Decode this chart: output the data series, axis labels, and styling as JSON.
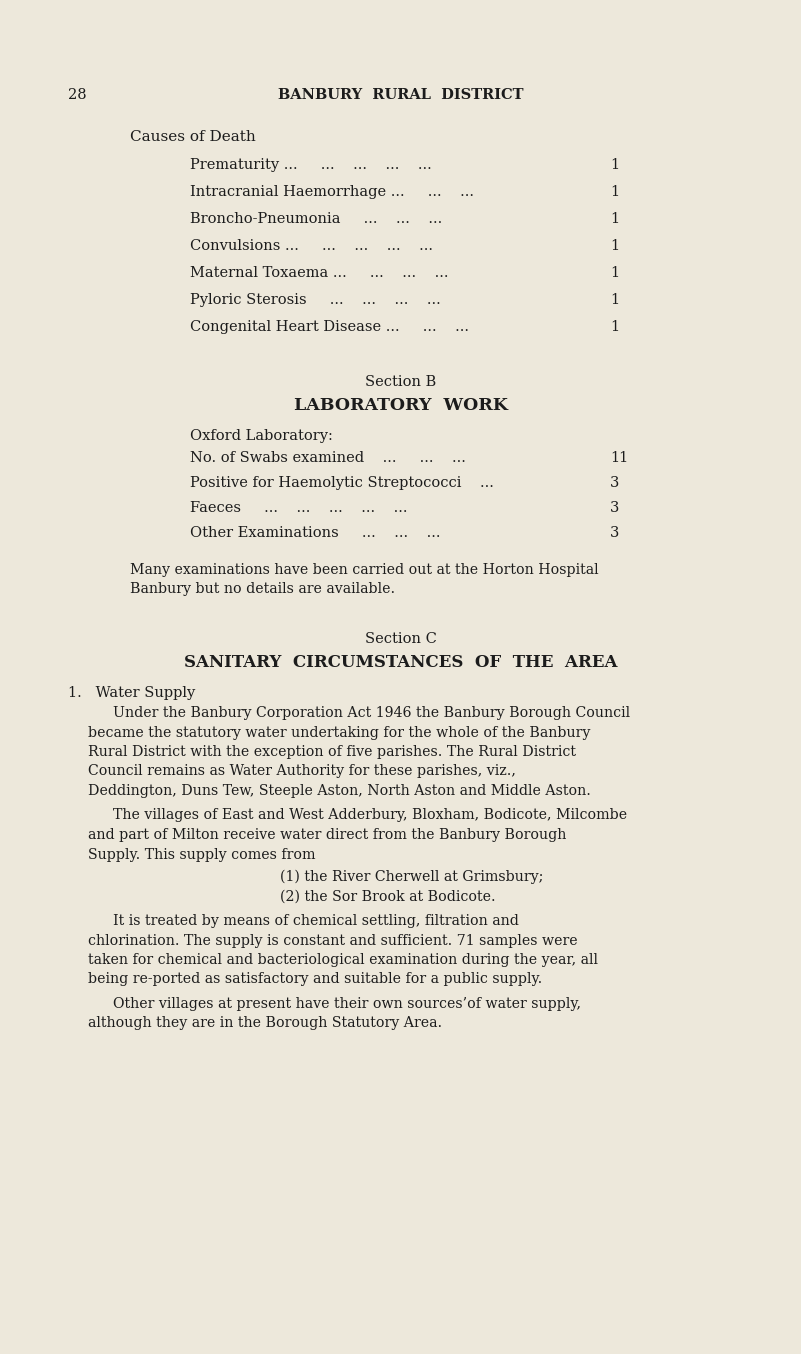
{
  "bg_color": "#ede8db",
  "text_color": "#1c1c1c",
  "page_number": "28",
  "header": "BANBURY  RURAL  DISTRICT",
  "causes_heading": "Causes of Death",
  "causes": [
    [
      "Prematurity ...     ...    ...    ...    ...",
      "1"
    ],
    [
      "Intracranial Haemorrhage ...     ...    ...",
      "1"
    ],
    [
      "Broncho-Pneumonia     ...    ...    ...",
      "1"
    ],
    [
      "Convulsions ...     ...    ...    ...    ...",
      "1"
    ],
    [
      "Maternal Toxaema ...     ...    ...    ...",
      "1"
    ],
    [
      "Pyloric Sterosis     ...    ...    ...    ...",
      "1"
    ],
    [
      "Congenital Heart Disease ...     ...    ...",
      "1"
    ]
  ],
  "section_b_label": "Section B",
  "section_b_heading": "LABORATORY  WORK",
  "oxford_label": "Oxford Laboratory:",
  "lab_items": [
    [
      "No. of Swabs examined    ...     ...    ...",
      "11"
    ],
    [
      "Positive for Haemolytic Streptococci    ...",
      "3"
    ],
    [
      "Faeces     ...    ...    ...    ...    ...",
      "3"
    ],
    [
      "Other Examinations     ...    ...    ...",
      "3"
    ]
  ],
  "lab_note_line1": "Many examinations have been carried out at the Horton Hospital",
  "lab_note_line2": "Banbury but no details are available.",
  "section_c_label": "Section C",
  "section_c_heading": "SANITARY  CIRCUMSTANCES  OF  THE  AREA",
  "water_heading": "1.   Water Supply",
  "para1_indent": "Under the Banbury Corporation Act 1946 the Banbury Borough Council became the statutory water undertaking for the whole of the Banbury Rural District with the exception of five parishes.  The Rural District Council remains as Water Authority for these parishes, viz., Deddington, Duns Tew, Steeple Aston, North Aston and Middle Aston.",
  "para2_indent": "The villages of East and West Adderbury, Bloxham, Bodicote, Milcombe and part of Milton receive water direct from the Banbury Borough Supply.  This supply comes from",
  "bullet1": "(1) the River Cherwell at Grimsbury;",
  "bullet2": "(2) the Sor Brook at Bodicote.",
  "para3_indent": "It is treated by means of chemical settling, filtration and chlorination. The supply is constant and sufficient.  71 samples were taken for chemical and bacteriological examination during the year, all being re­ported as satisfactory and suitable for a public supply.",
  "para4_indent": "Other villages at present have their own sources’of water supply, although they are in the Borough Statutory Area."
}
